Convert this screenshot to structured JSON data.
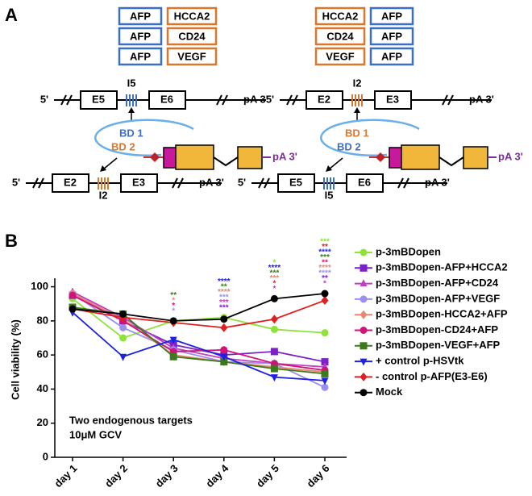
{
  "panel_a": {
    "label": "A",
    "left": {
      "pairs": [
        [
          "AFP",
          "HCCA2"
        ],
        [
          "AFP",
          "CD24"
        ],
        [
          "AFP",
          "VEGF"
        ]
      ],
      "top_gene": {
        "five": "5'",
        "exon1": "E5",
        "intron": "I5",
        "exon2": "E6",
        "tail": "pA 3'"
      },
      "bd1": "BD 1",
      "bd2": "BD 2",
      "construct_tail": "pA 3'",
      "bottom_gene": {
        "five": "5'",
        "exon1": "E2",
        "intron": "I2",
        "exon2": "E3",
        "tail": "pA 3'"
      }
    },
    "right": {
      "pairs": [
        [
          "HCCA2",
          "AFP"
        ],
        [
          "CD24",
          "AFP"
        ],
        [
          "VEGF",
          "AFP"
        ]
      ],
      "top_gene": {
        "five": "5'",
        "exon1": "E2",
        "intron": "I2",
        "exon2": "E3",
        "tail": "pA 3'"
      },
      "bd1": "BD 1",
      "bd2": "BD 2",
      "construct_tail": "pA 3'",
      "bottom_gene": {
        "five": "5'",
        "exon1": "E5",
        "intron": "I5",
        "exon2": "E6",
        "tail": "pA 3'"
      }
    }
  },
  "chart_data": {
    "type": "line",
    "panel_label": "B",
    "ylabel": "Cell viability (%)",
    "annotations": [
      "Two endogenous targets",
      "10μM GCV"
    ],
    "categories": [
      "day 1",
      "day 2",
      "day 3",
      "day 4",
      "day 5",
      "day 6"
    ],
    "ylim": [
      0,
      105
    ],
    "yticks": [
      0,
      20,
      40,
      60,
      80,
      100
    ],
    "series": [
      {
        "name": "p-3mBDopen",
        "color": "#8fe23a",
        "marker": "circle",
        "values": [
          93,
          70,
          80,
          82,
          75,
          73
        ]
      },
      {
        "name": "p-3mBDopen-AFP+HCCA2",
        "color": "#7a22c8",
        "marker": "square",
        "values": [
          95,
          80,
          66,
          60,
          62,
          56
        ]
      },
      {
        "name": "p-3mBDopen-AFP+CD24",
        "color": "#c040c0",
        "marker": "triangle",
        "values": [
          97,
          82,
          64,
          58,
          55,
          53
        ]
      },
      {
        "name": "p-3mBDopen-AFP+VEGF",
        "color": "#9a8ff0",
        "marker": "circle",
        "values": [
          96,
          76,
          63,
          56,
          55,
          41
        ]
      },
      {
        "name": "p-3mBDopen-HCCA2+AFP",
        "color": "#e88870",
        "marker": "diamond",
        "values": [
          96,
          81,
          60,
          56,
          53,
          50
        ]
      },
      {
        "name": "p-3mBDopen-CD24+AFP",
        "color": "#d0137a",
        "marker": "circle",
        "values": [
          95,
          80,
          62,
          63,
          55,
          51
        ]
      },
      {
        "name": "p-3mBDopen-VEGF+AFP",
        "color": "#3d7a1e",
        "marker": "square",
        "values": [
          88,
          84,
          59,
          56,
          52,
          49
        ]
      },
      {
        "name": "+ control p-HSVtk",
        "color": "#2020e0",
        "marker": "triangle-down",
        "values": [
          85,
          59,
          69,
          59,
          47,
          45
        ]
      },
      {
        "name": "- control p-AFP(E3-E6)",
        "color": "#e02020",
        "marker": "diamond",
        "values": [
          87,
          82,
          79,
          76,
          81,
          92
        ]
      },
      {
        "name": "Mock",
        "color": "#000000",
        "marker": "circle",
        "values": [
          87,
          84,
          80,
          81,
          93,
          96
        ]
      }
    ],
    "star_labels": [
      null,
      null,
      [
        {
          "text": "**",
          "color": "#3d7a1e"
        },
        {
          "text": "*",
          "color": "#e88870"
        },
        {
          "text": "*",
          "color": "#d0137a"
        },
        {
          "text": "*",
          "color": "#9a8ff0"
        }
      ],
      [
        {
          "text": "****",
          "color": "#2020e0"
        },
        {
          "text": "**",
          "color": "#3d7a1e"
        },
        {
          "text": "****",
          "color": "#e88870"
        },
        {
          "text": "***",
          "color": "#9a8ff0"
        },
        {
          "text": "***",
          "color": "#c040c0"
        },
        {
          "text": "***",
          "color": "#7a22c8"
        }
      ],
      [
        {
          "text": "*",
          "color": "#8fe23a"
        },
        {
          "text": "****",
          "color": "#2020e0"
        },
        {
          "text": "***",
          "color": "#3d7a1e"
        },
        {
          "text": "***",
          "color": "#e88870"
        },
        {
          "text": "*",
          "color": "#e02020"
        },
        {
          "text": "*",
          "color": "#c040c0"
        }
      ],
      [
        {
          "text": "***",
          "color": "#8fe23a"
        },
        {
          "text": "**",
          "color": "#e02020"
        },
        {
          "text": "****",
          "color": "#2020e0"
        },
        {
          "text": "***",
          "color": "#3d7a1e"
        },
        {
          "text": "**",
          "color": "#d0137a"
        },
        {
          "text": "****",
          "color": "#e88870"
        },
        {
          "text": "****",
          "color": "#9a8ff0"
        },
        {
          "text": "**",
          "color": "#7a22c8"
        },
        {
          "text": "*",
          "color": "#c040c0"
        }
      ]
    ]
  }
}
